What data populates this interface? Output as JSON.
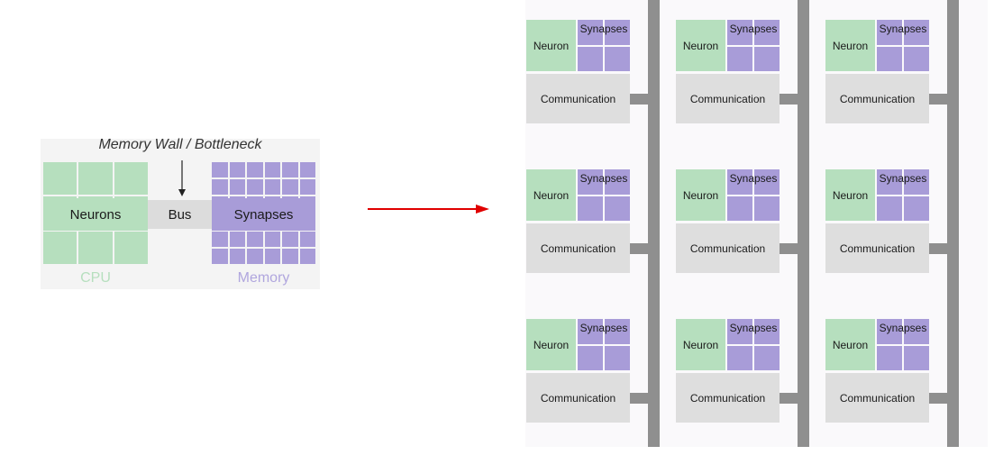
{
  "von_neumann": {
    "title": "Memory Wall / Bottleneck",
    "neurons_label": "Neurons",
    "bus_label": "Bus",
    "synapses_label": "Synapses",
    "cpu_caption": "CPU",
    "memory_caption": "Memory"
  },
  "neuromorphic": {
    "neuron_label": "Neuron",
    "synapses_label": "Synapses",
    "communication_label": "Communication",
    "rows": 3,
    "columns": 3
  },
  "colors": {
    "neuron_green": "#b6dfbe",
    "synapse_purple": "#a89cd8",
    "communication_gray": "#dedede",
    "bus_gray": "#8f8f8f",
    "arrow_red": "#e00000"
  }
}
